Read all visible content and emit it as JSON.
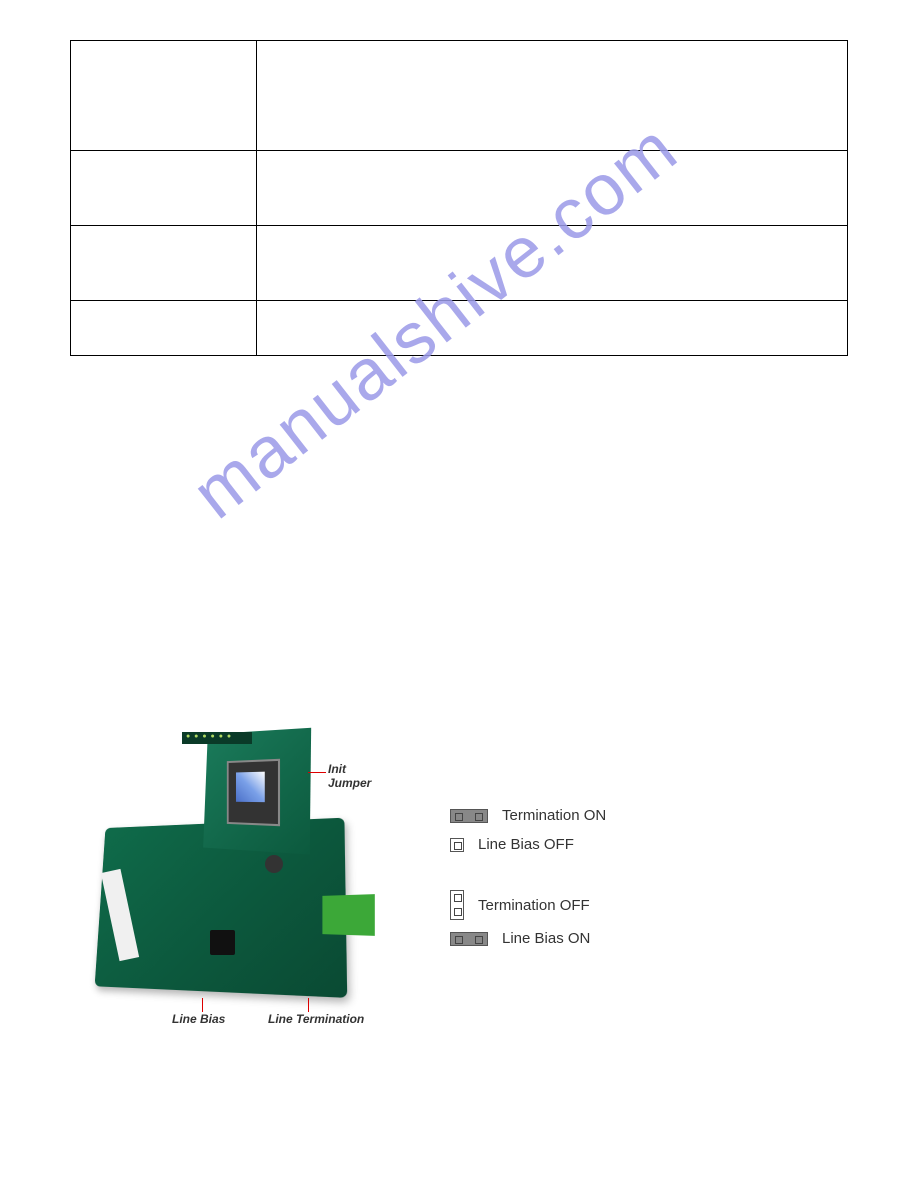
{
  "watermark": "manualshive.com",
  "table": {
    "rows": [
      {
        "c1": "",
        "c2": ""
      },
      {
        "c1": "",
        "c2": ""
      },
      {
        "c1": "",
        "c2": ""
      },
      {
        "c1": "",
        "c2": ""
      }
    ]
  },
  "figure": {
    "labels": {
      "init1": "Init",
      "init2": "Jumper",
      "linebias": "Line Bias",
      "lineterm": "Line Termination"
    },
    "legend": {
      "group1": {
        "line1": "Termination ON",
        "line2": "Line Bias OFF"
      },
      "group2": {
        "line1": "Termination OFF",
        "line2": "Line Bias ON"
      }
    }
  }
}
